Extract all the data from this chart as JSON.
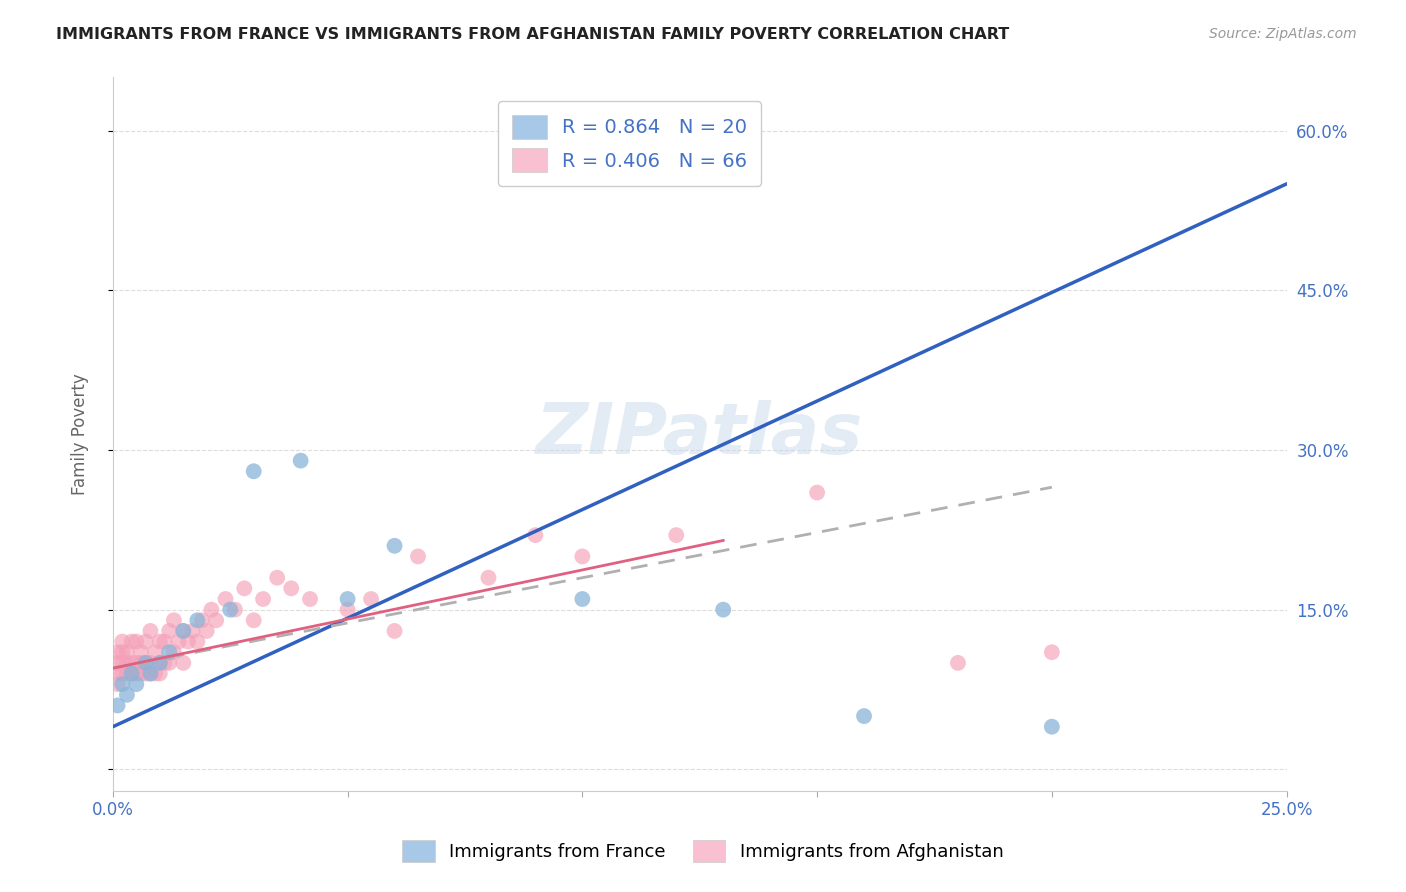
{
  "title": "IMMIGRANTS FROM FRANCE VS IMMIGRANTS FROM AFGHANISTAN FAMILY POVERTY CORRELATION CHART",
  "source": "Source: ZipAtlas.com",
  "ylabel": "Family Poverty",
  "x_min": 0.0,
  "x_max": 0.25,
  "y_min": -0.02,
  "y_max": 0.65,
  "france_scatter_color": "#8ab4d8",
  "afghanistan_scatter_color": "#f4a0b8",
  "france_line_color": "#3060c0",
  "afghanistan_line_color": "#c0c0c0",
  "afghanistan_line_color2": "#e06080",
  "france_R": 0.864,
  "france_N": 20,
  "afghanistan_R": 0.406,
  "afghanistan_N": 66,
  "legend_text_color": "#4472c4",
  "watermark": "ZIPatlas",
  "france_patch_color": "#a8c8e8",
  "afghanistan_patch_color": "#f8c0d0",
  "france_scatter_x": [
    0.001,
    0.002,
    0.003,
    0.004,
    0.005,
    0.007,
    0.008,
    0.01,
    0.012,
    0.015,
    0.018,
    0.025,
    0.03,
    0.04,
    0.05,
    0.06,
    0.1,
    0.13,
    0.16,
    0.2
  ],
  "france_scatter_y": [
    0.06,
    0.08,
    0.07,
    0.09,
    0.08,
    0.1,
    0.09,
    0.1,
    0.11,
    0.13,
    0.14,
    0.15,
    0.28,
    0.29,
    0.16,
    0.21,
    0.16,
    0.15,
    0.05,
    0.04
  ],
  "afghanistan_scatter_x": [
    0.001,
    0.001,
    0.001,
    0.001,
    0.002,
    0.002,
    0.002,
    0.002,
    0.003,
    0.003,
    0.003,
    0.004,
    0.004,
    0.004,
    0.005,
    0.005,
    0.005,
    0.006,
    0.006,
    0.006,
    0.007,
    0.007,
    0.007,
    0.008,
    0.008,
    0.008,
    0.009,
    0.009,
    0.01,
    0.01,
    0.01,
    0.011,
    0.011,
    0.012,
    0.012,
    0.013,
    0.013,
    0.014,
    0.015,
    0.015,
    0.016,
    0.017,
    0.018,
    0.019,
    0.02,
    0.021,
    0.022,
    0.024,
    0.026,
    0.028,
    0.03,
    0.032,
    0.035,
    0.038,
    0.042,
    0.05,
    0.055,
    0.06,
    0.065,
    0.08,
    0.09,
    0.1,
    0.12,
    0.15,
    0.18,
    0.2
  ],
  "afghanistan_scatter_y": [
    0.08,
    0.09,
    0.1,
    0.11,
    0.09,
    0.1,
    0.11,
    0.12,
    0.09,
    0.1,
    0.11,
    0.09,
    0.1,
    0.12,
    0.09,
    0.1,
    0.12,
    0.09,
    0.1,
    0.11,
    0.09,
    0.1,
    0.12,
    0.09,
    0.1,
    0.13,
    0.09,
    0.11,
    0.09,
    0.1,
    0.12,
    0.1,
    0.12,
    0.1,
    0.13,
    0.11,
    0.14,
    0.12,
    0.1,
    0.13,
    0.12,
    0.13,
    0.12,
    0.14,
    0.13,
    0.15,
    0.14,
    0.16,
    0.15,
    0.17,
    0.14,
    0.16,
    0.18,
    0.17,
    0.16,
    0.15,
    0.16,
    0.13,
    0.2,
    0.18,
    0.22,
    0.2,
    0.22,
    0.26,
    0.1,
    0.11
  ],
  "grid_color": "#dddddd",
  "background_color": "#ffffff",
  "france_line_x": [
    0.0,
    0.25
  ],
  "france_line_y": [
    0.04,
    0.55
  ],
  "afghanistan_line_x": [
    0.0,
    0.2
  ],
  "afghanistan_line_y": [
    0.095,
    0.265
  ]
}
